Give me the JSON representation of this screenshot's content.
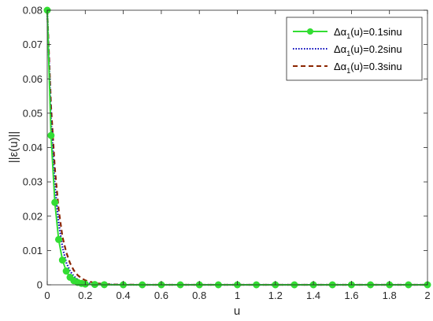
{
  "chart_data": {
    "type": "line",
    "title": "",
    "xlabel": "u",
    "ylabel": "||ε(u)||",
    "xlim": [
      0,
      2
    ],
    "ylim": [
      0,
      0.08
    ],
    "xticks": [
      "0",
      "0.2",
      "0.4",
      "0.6",
      "0.8",
      "1",
      "1.2",
      "1.4",
      "1.6",
      "1.8",
      "2"
    ],
    "yticks": [
      "0",
      "0.01",
      "0.02",
      "0.03",
      "0.04",
      "0.05",
      "0.06",
      "0.07",
      "0.08"
    ],
    "grid": false,
    "legend_position": "top-right",
    "series": [
      {
        "name": "Δα₁(u)=0.1sinu",
        "legend_main": "Δα",
        "legend_sub": "1",
        "legend_rest": "(u)=0.1sinu",
        "color": "#33dd33",
        "style": "solid-marker",
        "x": [
          0,
          0.02,
          0.04,
          0.06,
          0.08,
          0.1,
          0.12,
          0.14,
          0.16,
          0.18,
          0.2,
          0.25,
          0.3,
          0.4,
          0.5,
          0.6,
          0.7,
          0.8,
          0.9,
          1.0,
          1.1,
          1.2,
          1.3,
          1.4,
          1.5,
          1.6,
          1.7,
          1.8,
          1.9,
          2.0
        ],
        "y": [
          0.08,
          0.0435,
          0.024,
          0.0132,
          0.0072,
          0.004,
          0.0022,
          0.0012,
          0.0007,
          0.0004,
          0.0002,
          0.0001,
          4e-05,
          0,
          0,
          0,
          0,
          0,
          0,
          0,
          0,
          0,
          0,
          0,
          0,
          0,
          0,
          0,
          0,
          0
        ]
      },
      {
        "name": "Δα₁(u)=0.2sinu",
        "legend_main": "Δα",
        "legend_sub": "1",
        "legend_rest": "(u)=0.2sinu",
        "color": "#0000bb",
        "style": "dotted",
        "x": [
          0,
          0.02,
          0.04,
          0.06,
          0.08,
          0.1,
          0.12,
          0.14,
          0.16,
          0.18,
          0.2,
          0.25,
          0.3,
          0.35,
          0.4,
          0.5,
          0.6,
          0.8,
          1.0,
          1.5,
          2.0
        ],
        "y": [
          0.08,
          0.048,
          0.029,
          0.018,
          0.011,
          0.0065,
          0.004,
          0.0025,
          0.0015,
          0.0009,
          0.0006,
          0.0002,
          0.0001,
          3e-05,
          0,
          0,
          0,
          0,
          0,
          0,
          0
        ]
      },
      {
        "name": "Δα₁(u)=0.3sinu",
        "legend_main": "Δα",
        "legend_sub": "1",
        "legend_rest": "(u)=0.3sinu",
        "color": "#8b2500",
        "style": "dashed",
        "x": [
          0,
          0.02,
          0.04,
          0.06,
          0.08,
          0.1,
          0.12,
          0.14,
          0.16,
          0.18,
          0.2,
          0.25,
          0.3,
          0.35,
          0.4,
          0.5,
          0.6,
          0.8,
          1.0,
          1.5,
          2.0
        ],
        "y": [
          0.08,
          0.052,
          0.034,
          0.022,
          0.014,
          0.0095,
          0.0063,
          0.0042,
          0.0028,
          0.0019,
          0.0013,
          0.0005,
          0.0002,
          0.0001,
          5e-05,
          0,
          0,
          0,
          0,
          0,
          0
        ]
      }
    ]
  }
}
